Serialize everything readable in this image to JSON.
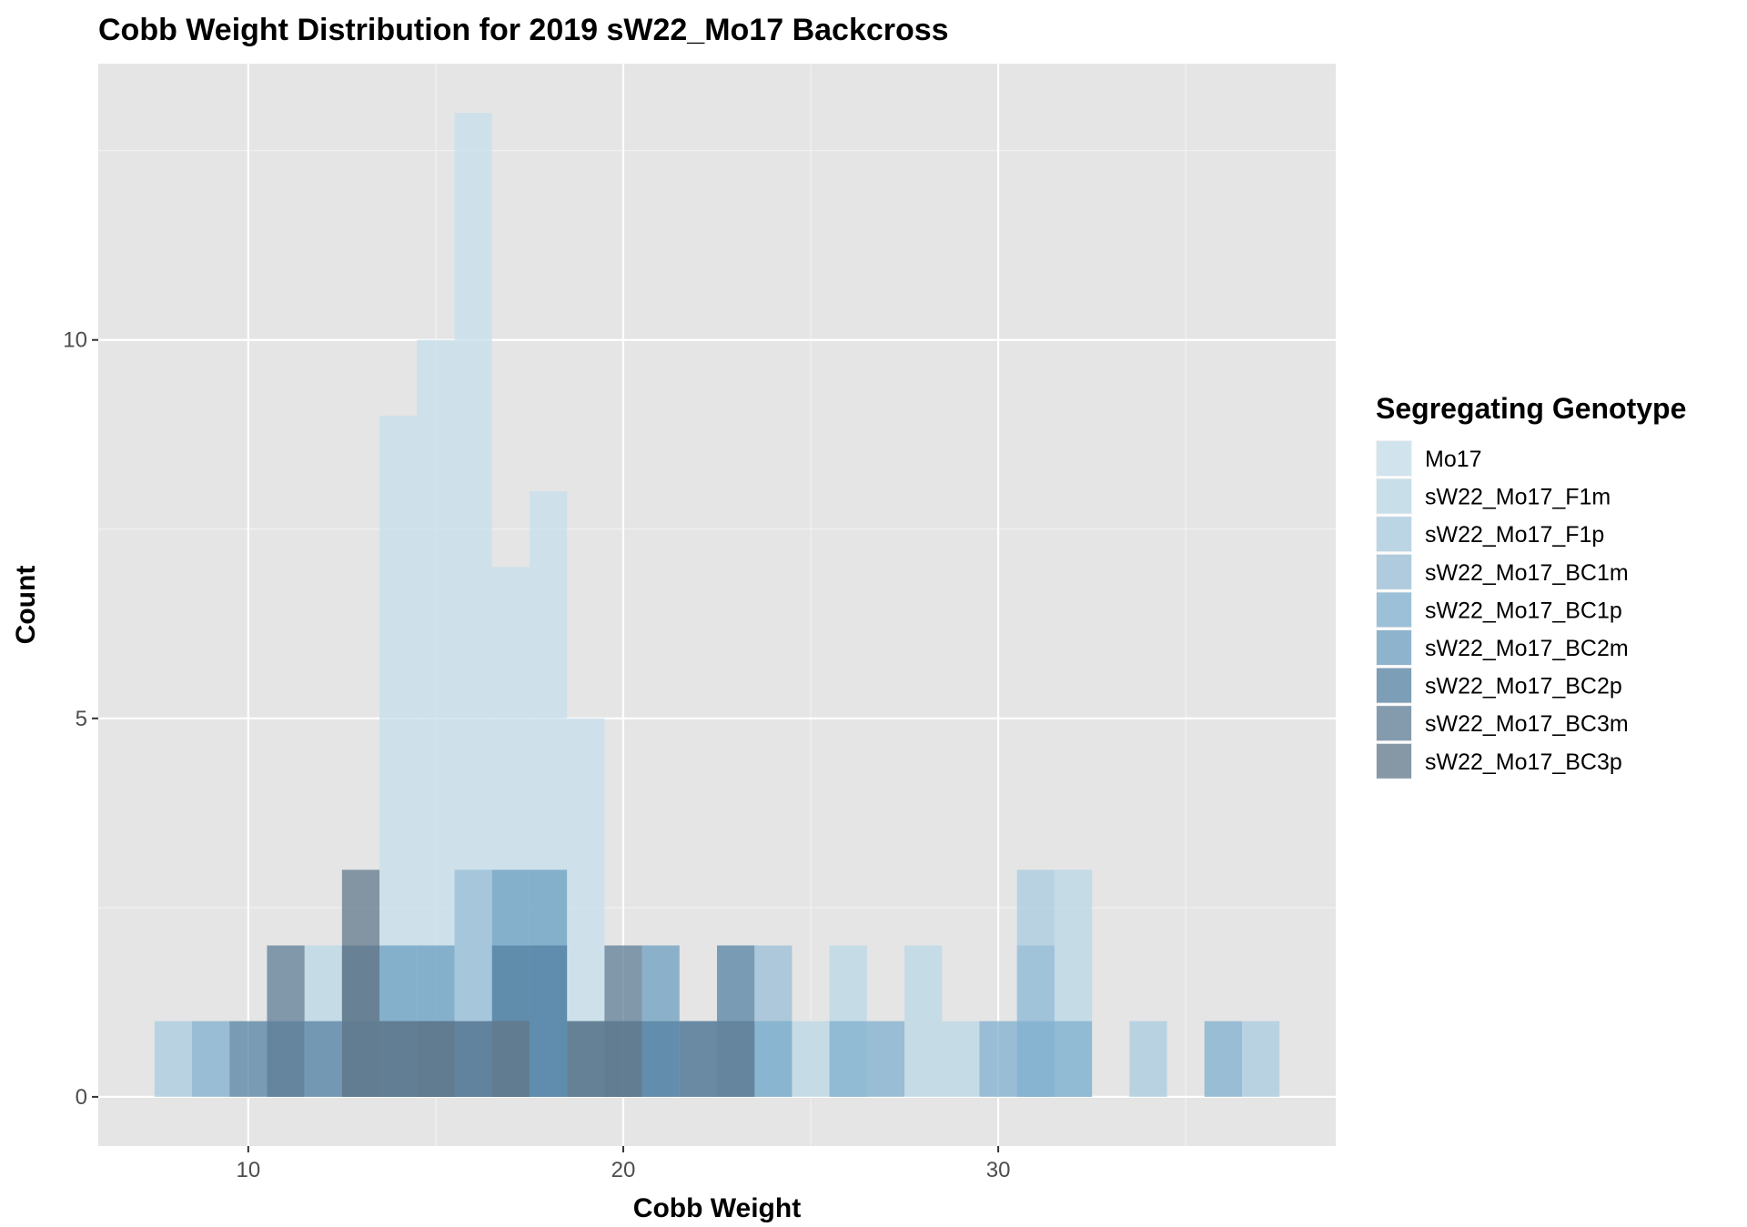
{
  "chart_data": {
    "type": "bar",
    "subtype": "overlapping-histogram",
    "title": "Cobb Weight Distribution for 2019 sW22_Mo17 Backcross",
    "xlabel": "Cobb Weight",
    "ylabel": "Count",
    "xlim": [
      6,
      39
    ],
    "ylim": [
      -0.65,
      13.65
    ],
    "bin_width": 1,
    "x_ticks": [
      10,
      20,
      30
    ],
    "y_ticks": [
      0,
      5,
      10
    ],
    "grid": true,
    "legend": {
      "title": "Segregating Genotype",
      "placement": "right"
    },
    "series": [
      {
        "name": "Mo17",
        "color": "#c6dfec",
        "opacity": 0.75,
        "bins": [
          [
            14,
            9
          ],
          [
            15,
            10
          ],
          [
            16,
            13
          ],
          [
            17,
            7
          ],
          [
            18,
            8
          ],
          [
            19,
            5
          ]
        ]
      },
      {
        "name": "sW22_Mo17_F1m",
        "color": "#b9d7e6",
        "opacity": 0.75,
        "bins": [
          [
            12,
            2
          ],
          [
            14,
            1
          ],
          [
            18,
            2
          ],
          [
            19,
            1
          ],
          [
            25,
            1
          ],
          [
            26,
            2
          ],
          [
            28,
            2
          ],
          [
            29,
            1
          ],
          [
            32,
            3
          ]
        ]
      },
      {
        "name": "sW22_Mo17_F1p",
        "color": "#a8cbe0",
        "opacity": 0.75,
        "bins": [
          [
            8,
            1
          ],
          [
            31,
            3
          ],
          [
            34,
            1
          ],
          [
            37,
            1
          ]
        ]
      },
      {
        "name": "sW22_Mo17_BC1m",
        "color": "#98bed6",
        "opacity": 0.75,
        "bins": [
          [
            16,
            3
          ],
          [
            24,
            2
          ],
          [
            31,
            2
          ]
        ]
      },
      {
        "name": "sW22_Mo17_BC1p",
        "color": "#7fafcd",
        "opacity": 0.75,
        "bins": [
          [
            9,
            1
          ],
          [
            24,
            1
          ],
          [
            26,
            1
          ],
          [
            27,
            1
          ],
          [
            30,
            1
          ],
          [
            31,
            1
          ],
          [
            32,
            1
          ],
          [
            36,
            1
          ]
        ]
      },
      {
        "name": "sW22_Mo17_BC2m",
        "color": "#6c9fc0",
        "opacity": 0.75,
        "bins": [
          [
            14,
            2
          ],
          [
            15,
            2
          ],
          [
            17,
            3
          ],
          [
            18,
            3
          ],
          [
            21,
            2
          ],
          [
            22,
            1
          ]
        ]
      },
      {
        "name": "sW22_Mo17_BC2p",
        "color": "#5582a3",
        "opacity": 0.75,
        "bins": [
          [
            10,
            1
          ],
          [
            11,
            1
          ],
          [
            12,
            1
          ],
          [
            13,
            1
          ],
          [
            14,
            1
          ],
          [
            15,
            1
          ],
          [
            16,
            1
          ],
          [
            17,
            2
          ],
          [
            18,
            2
          ],
          [
            19,
            1
          ],
          [
            20,
            1
          ],
          [
            21,
            1
          ],
          [
            23,
            2
          ]
        ]
      },
      {
        "name": "sW22_Mo17_BC3m",
        "color": "#5f7d97",
        "opacity": 0.75,
        "bins": [
          [
            11,
            2
          ],
          [
            13,
            2
          ],
          [
            15,
            1
          ],
          [
            16,
            1
          ],
          [
            17,
            1
          ],
          [
            20,
            2
          ],
          [
            22,
            1
          ],
          [
            23,
            1
          ]
        ]
      },
      {
        "name": "sW22_Mo17_BC3p",
        "color": "#62798c",
        "opacity": 0.75,
        "bins": [
          [
            13,
            3
          ],
          [
            14,
            1
          ],
          [
            15,
            1
          ],
          [
            17,
            1
          ],
          [
            19,
            1
          ],
          [
            20,
            1
          ]
        ]
      }
    ]
  }
}
